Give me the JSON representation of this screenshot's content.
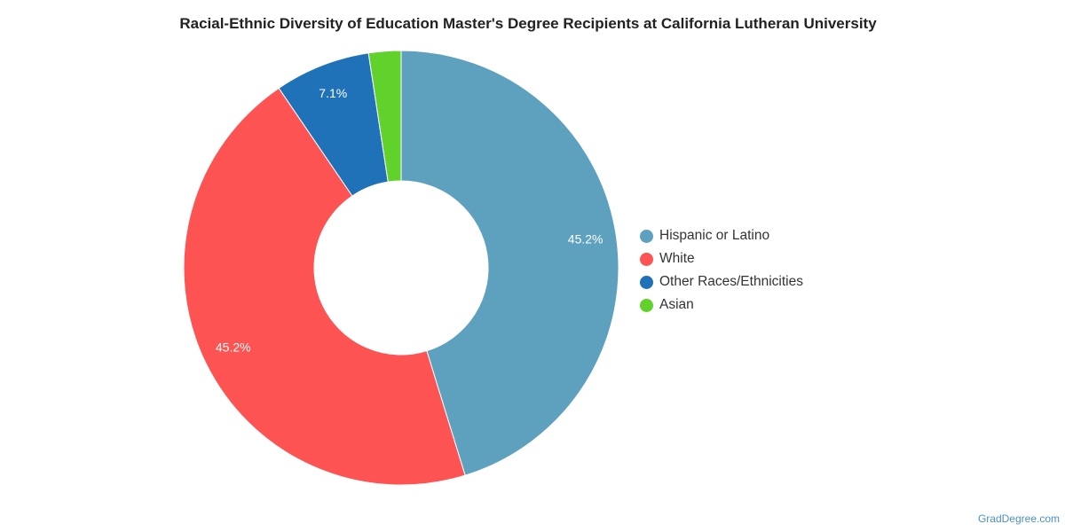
{
  "colors": {
    "background": "#ffffff",
    "title": "#222222",
    "slice_border": "#ffffff",
    "data_label": "#ffffff"
  },
  "chart_data": {
    "type": "pie",
    "title": "Racial-Ethnic Diversity of Education Master's Degree Recipients at California Lutheran University",
    "donut": true,
    "legend_position": "right",
    "slices": [
      {
        "label": "Hispanic or Latino",
        "value": 45.2,
        "display": "45.2%",
        "color": "#5ea1bf"
      },
      {
        "label": "White",
        "value": 45.2,
        "display": "45.2%",
        "color": "#fe5353"
      },
      {
        "label": "Other Races/Ethnicities",
        "value": 7.1,
        "display": "7.1%",
        "color": "#1f71b8"
      },
      {
        "label": "Asian",
        "value": 2.4,
        "display": "",
        "color": "#61d22b"
      }
    ]
  },
  "watermark": "GradDegree.com"
}
